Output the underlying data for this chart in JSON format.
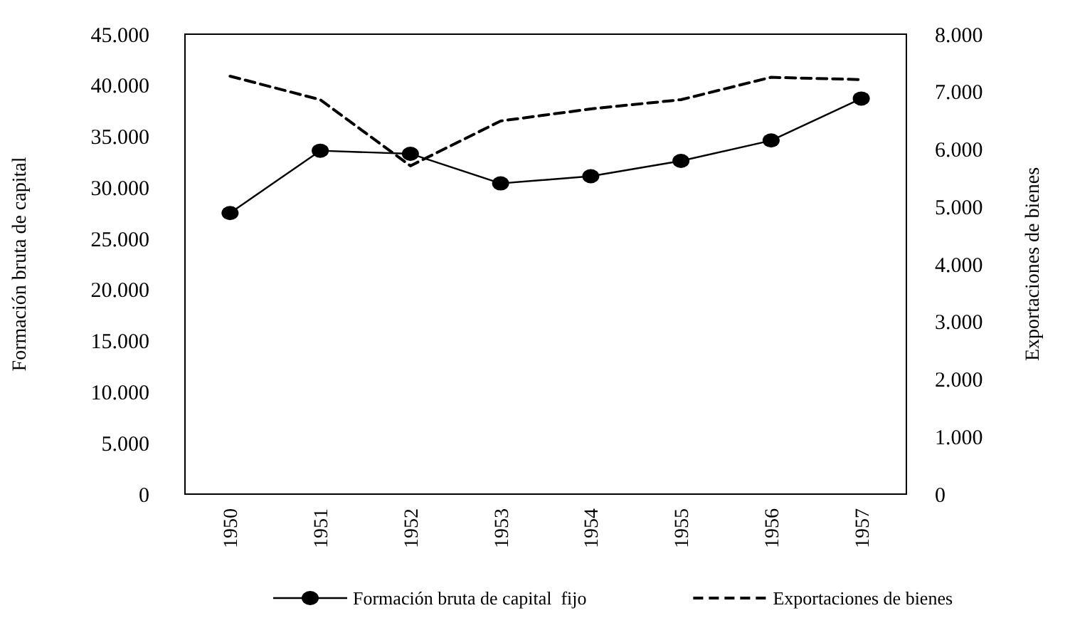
{
  "chart_data": {
    "type": "line",
    "ylabel": "Formación bruta de capital",
    "y2label": "Exportaciones de bienes",
    "categories": [
      "1950",
      "1951",
      "1952",
      "1953",
      "1954",
      "1955",
      "1956",
      "1957"
    ],
    "series": [
      {
        "name": "Formación bruta de capital  fijo",
        "color": "#000000",
        "marker": "circle",
        "line_style": "solid",
        "values": [
          27500,
          33600,
          33300,
          30400,
          31100,
          32600,
          34600,
          38700
        ]
      },
      {
        "name": "Exportaciones de bienes",
        "color": "#000000",
        "marker": "none",
        "line_style": "dashed",
        "axis": "y2",
        "values": [
          7270,
          6860,
          5710,
          6490,
          6700,
          6860,
          7250,
          7210
        ]
      }
    ],
    "ylim": [
      0,
      45000
    ],
    "yticks": [
      {
        "value": 0,
        "label": "0"
      },
      {
        "value": 5000,
        "label": "5.000"
      },
      {
        "value": 10000,
        "label": "10.000"
      },
      {
        "value": 15000,
        "label": "15.000"
      },
      {
        "value": 20000,
        "label": "20.000"
      },
      {
        "value": 25000,
        "label": "25.000"
      },
      {
        "value": 30000,
        "label": "30.000"
      },
      {
        "value": 35000,
        "label": "35.000"
      },
      {
        "value": 40000,
        "label": "40.000"
      },
      {
        "value": 45000,
        "label": "45.000"
      }
    ],
    "y2lim": [
      0,
      8000
    ],
    "y2ticks": [
      {
        "value": 0,
        "label": "0"
      },
      {
        "value": 1000,
        "label": "1.000"
      },
      {
        "value": 2000,
        "label": "2.000"
      },
      {
        "value": 3000,
        "label": "3.000"
      },
      {
        "value": 4000,
        "label": "4.000"
      },
      {
        "value": 5000,
        "label": "5.000"
      },
      {
        "value": 6000,
        "label": "6.000"
      },
      {
        "value": 7000,
        "label": "7.000"
      },
      {
        "value": 8000,
        "label": "8.000"
      }
    ],
    "grid": false,
    "legend": "bottom"
  }
}
